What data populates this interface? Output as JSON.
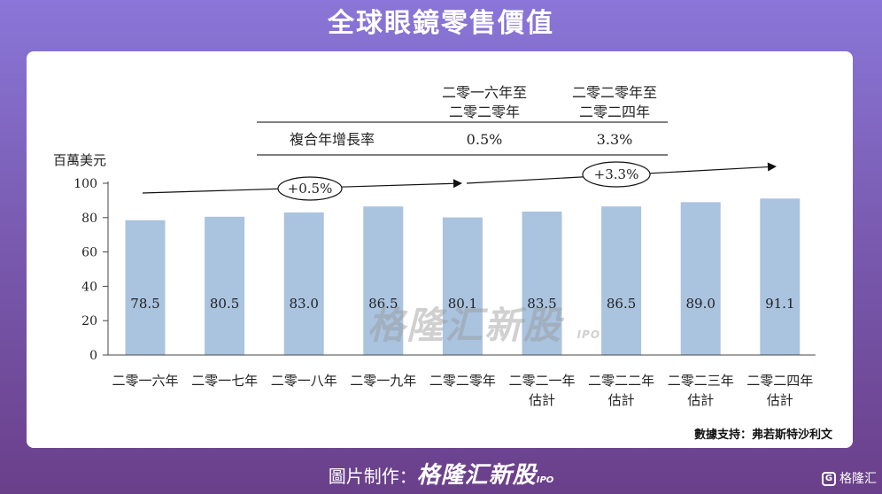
{
  "header": {
    "title": "全球眼鏡零售價值"
  },
  "source_note": "數據支持：弗若斯特沙利文",
  "footer": {
    "prefix": "圖片制作：",
    "brand": "格隆汇新股",
    "brand_suffix": "IPO"
  },
  "logo": {
    "text": "格隆汇"
  },
  "watermark": {
    "text": "格隆汇新股",
    "suffix": "IPO"
  },
  "cagr_table": {
    "period1": [
      "二零一六年至",
      "二零二零年"
    ],
    "period2": [
      "二零二零年至",
      "二零二四年"
    ],
    "row_label": "複合年增長率",
    "value1": "0.5%",
    "value2": "3.3%"
  },
  "growth_labels": [
    "+0.5%",
    "+3.3%"
  ],
  "chart_data": {
    "type": "bar",
    "ylabel": "百萬美元",
    "ylim": [
      0,
      100
    ],
    "yticks": [
      0,
      20,
      40,
      60,
      80,
      100
    ],
    "bar_color": "#aac3df",
    "categories": [
      [
        "二零一六年"
      ],
      [
        "二零一七年"
      ],
      [
        "二零一八年"
      ],
      [
        "二零一九年"
      ],
      [
        "二零二零年"
      ],
      [
        "二零二一年",
        "估計"
      ],
      [
        "二零二二年",
        "估計"
      ],
      [
        "二零二三年",
        "估計"
      ],
      [
        "二零二四年",
        "估計"
      ]
    ],
    "values": [
      78.5,
      80.5,
      83.0,
      86.5,
      80.1,
      83.5,
      86.5,
      89.0,
      91.1
    ],
    "data_labels": [
      "78.5",
      "80.5",
      "83.0",
      "86.5",
      "80.1",
      "83.5",
      "86.5",
      "89.0",
      "91.1"
    ]
  }
}
